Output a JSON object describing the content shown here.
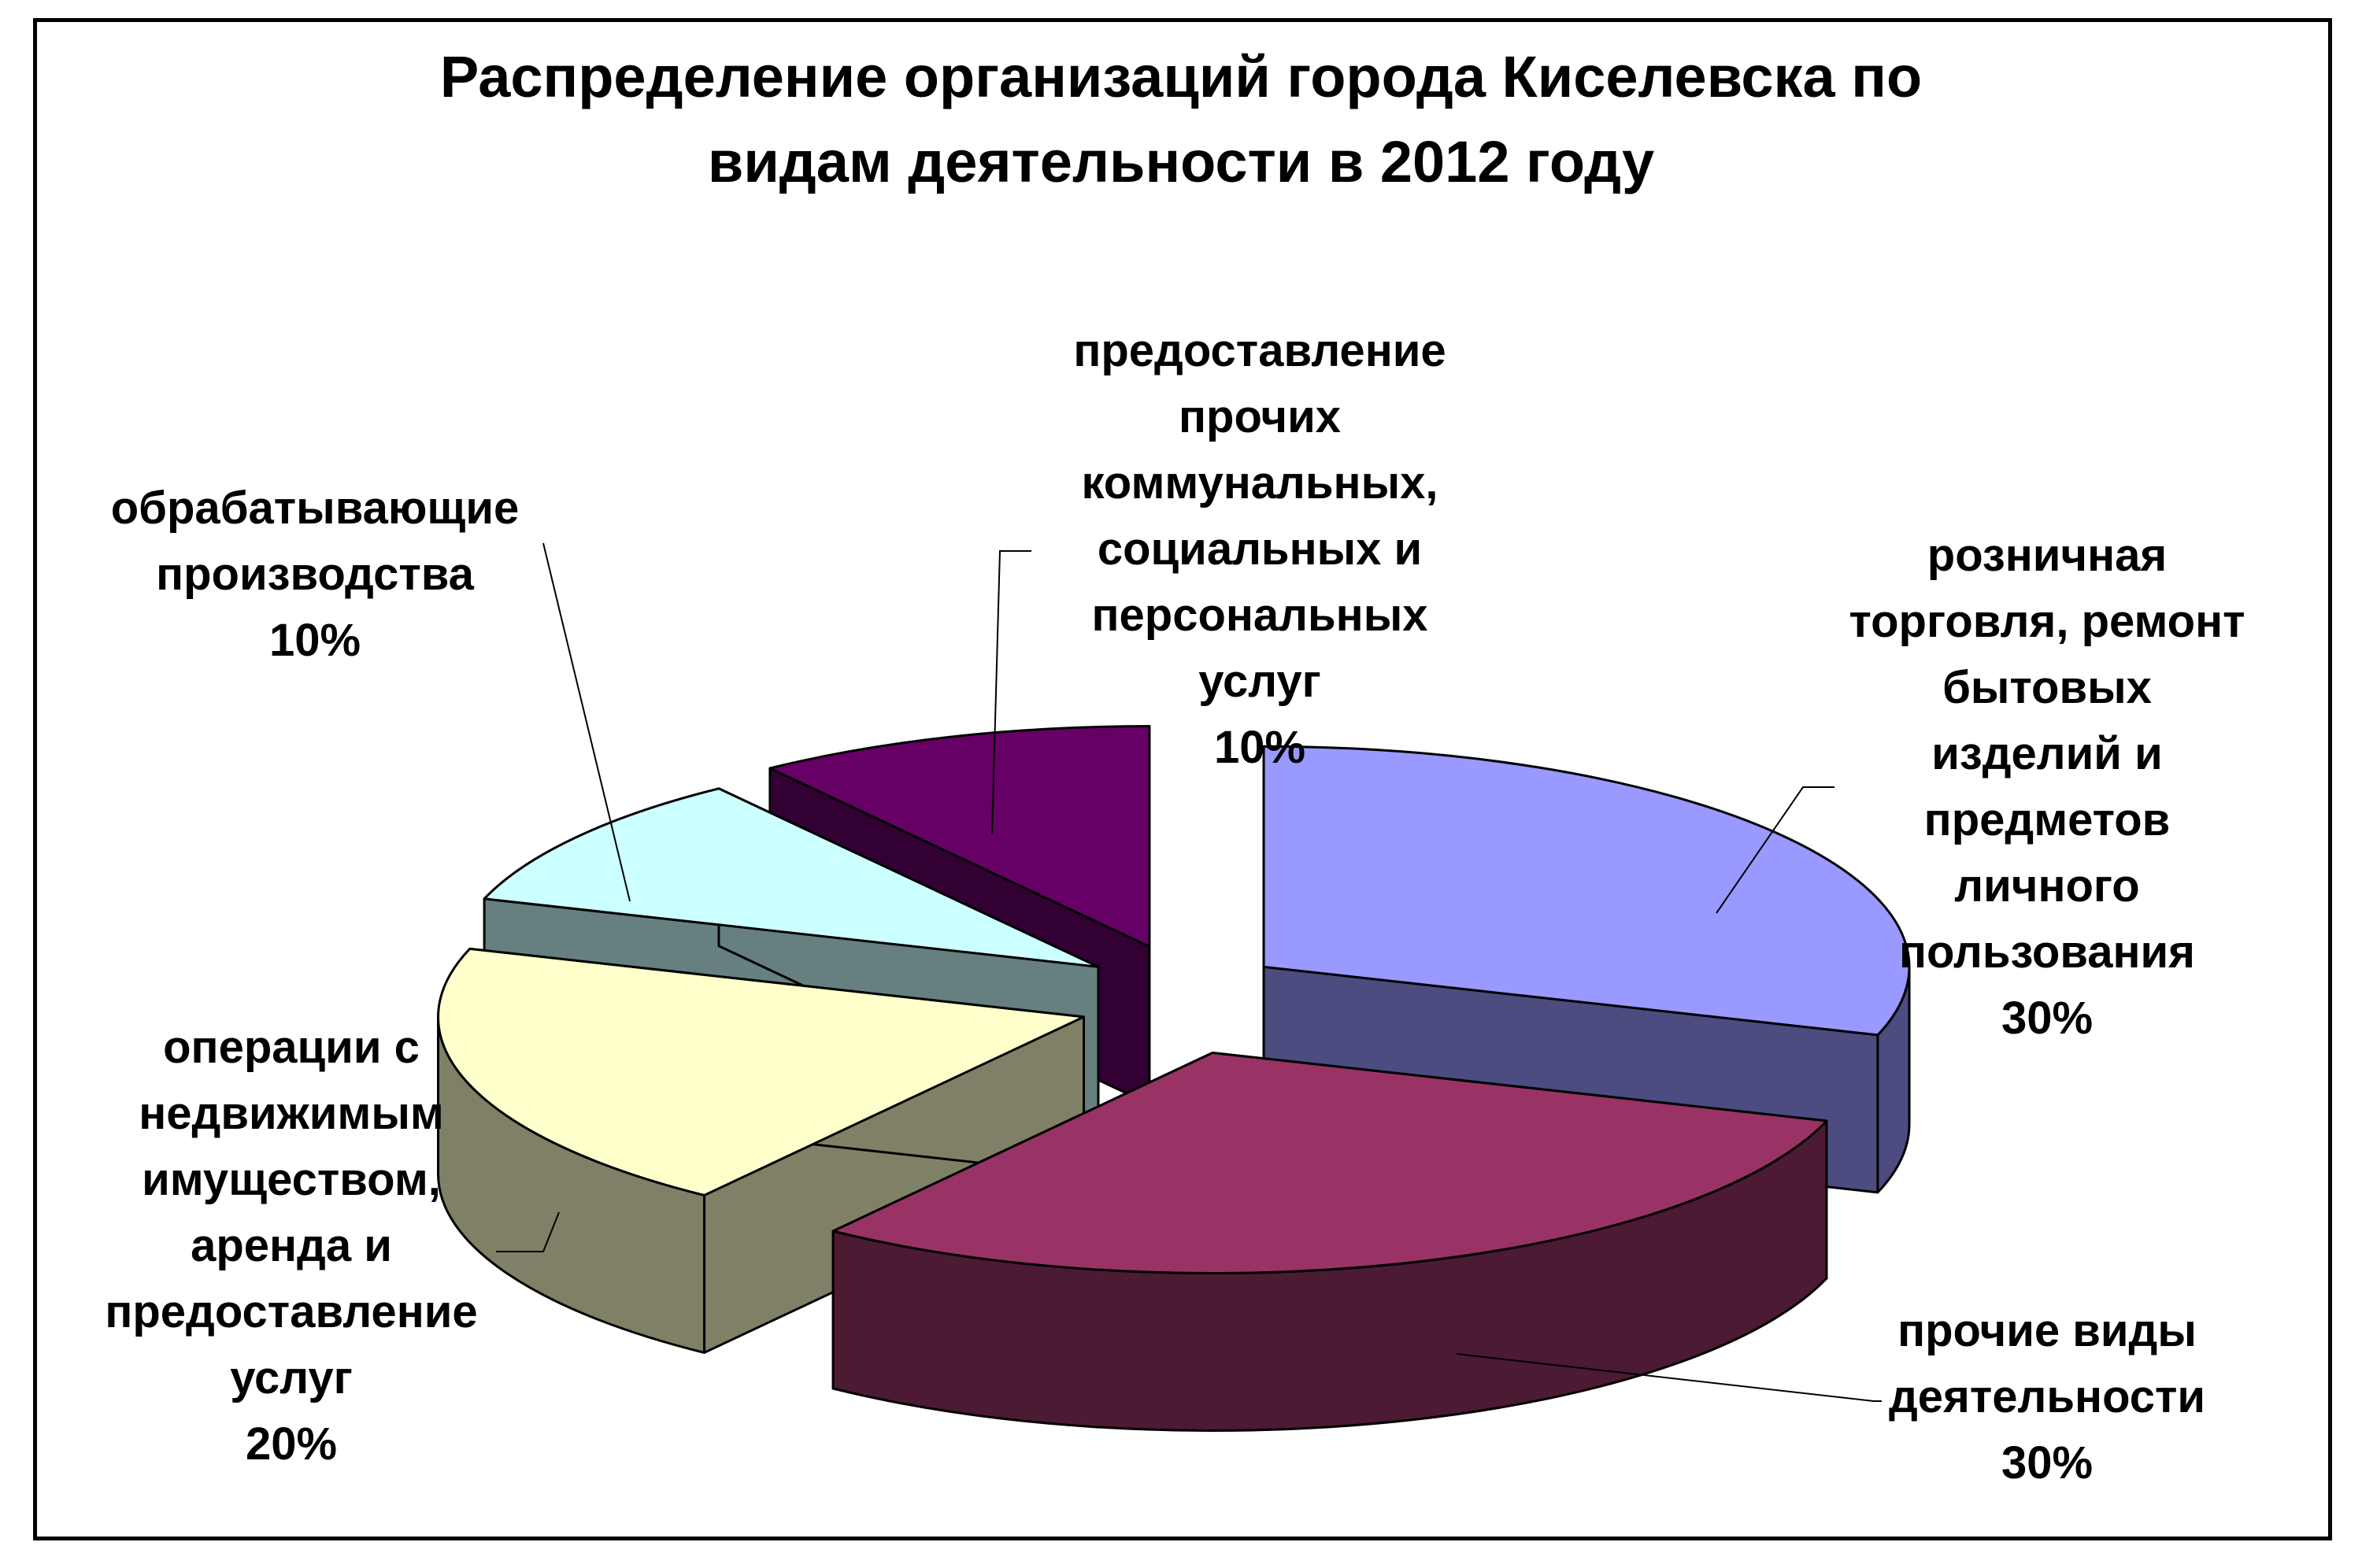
{
  "chart_data": {
    "type": "pie",
    "style": "3d-exploded",
    "title": "Распределение организаций города Киселевска по видам деятельности в 2012 году",
    "title_lines": [
      "Распределение организаций города Киселевска по",
      "видам деятельности в 2012 году"
    ],
    "unit": "%",
    "slices": [
      {
        "label": "розничная торговля, ремонт бытовых изделий и предметов личного пользования",
        "label_lines": [
          "розничная",
          "торговля, ремонт",
          "бытовых",
          "изделий и",
          "предметов",
          "личного",
          "пользования"
        ],
        "value": 30,
        "value_label": "30%",
        "color": "#9999FF",
        "side_color": "#4C4C80"
      },
      {
        "label": "прочие виды деятельности",
        "label_lines": [
          "прочие виды",
          "деятельности"
        ],
        "value": 30,
        "value_label": "30%",
        "color": "#993366",
        "side_color": "#4C1A33"
      },
      {
        "label": "операции с недвижимым имуществом, аренда и предоставление услуг",
        "label_lines": [
          "операции с",
          "недвижимым",
          "имуществом,",
          "аренда и",
          "предоставление",
          "услуг"
        ],
        "value": 20,
        "value_label": "20%",
        "color": "#FFFFCC",
        "side_color": "#808066"
      },
      {
        "label": "обрабатывающие производства",
        "label_lines": [
          "обрабатывающие",
          "производства"
        ],
        "value": 10,
        "value_label": "10%",
        "color": "#CCFFFF",
        "side_color": "#668080"
      },
      {
        "label": "предоставление прочих коммунальных, социальных и персональных услуг",
        "label_lines": [
          "предоставление",
          "прочих",
          "коммунальных,",
          "социальных и",
          "персональных",
          "услуг"
        ],
        "value": 10,
        "value_label": "10%",
        "color": "#660066",
        "side_color": "#330033"
      }
    ],
    "legend": "none"
  }
}
